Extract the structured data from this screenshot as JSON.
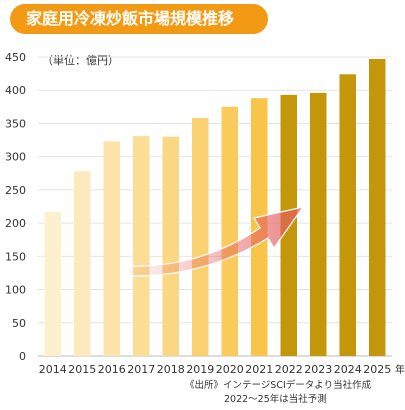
{
  "title": "家庭用冷凍炒飯市場規模推移",
  "unit_label": "（単位：億円）",
  "source_note": "《出所》インテージSCIデータより当社作成",
  "forecast_note": "2022〜25年は当社予測",
  "colors": {
    "title_bg": "#f39a14",
    "actual_bar_gradient": [
      "#fdf0cf",
      "#f9c44a"
    ],
    "forecast_bar": "#c4970a",
    "arrow": "#e35d5d"
  },
  "chart_data": {
    "type": "bar",
    "title": "家庭用冷凍炒飯市場規模推移",
    "ylabel": "（単位：億円）",
    "xlabel": "",
    "x_suffix": "年",
    "ylim": [
      0,
      450
    ],
    "yticks": [
      0,
      50,
      100,
      150,
      200,
      250,
      300,
      350,
      400,
      450
    ],
    "grid": true,
    "categories": [
      "2014",
      "2015",
      "2016",
      "2017",
      "2018",
      "2019",
      "2020",
      "2021",
      "2022",
      "2023",
      "2024",
      "2025"
    ],
    "values": [
      217,
      278,
      323,
      331,
      330,
      358,
      375,
      388,
      393,
      396,
      424,
      447
    ],
    "forecast_from": "2022"
  }
}
